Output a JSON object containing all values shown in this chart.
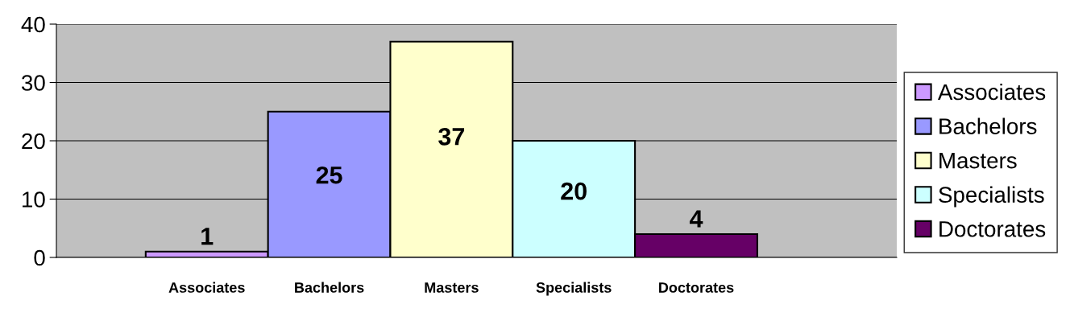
{
  "chart_data": {
    "type": "bar",
    "categories": [
      "Associates",
      "Bachelors",
      "Masters",
      "Specialists",
      "Doctorates"
    ],
    "series": [
      {
        "name": "Associates",
        "color": "#cc99ff",
        "values": [
          1,
          null,
          null,
          null,
          null
        ]
      },
      {
        "name": "Bachelors",
        "color": "#9999ff",
        "values": [
          null,
          25,
          null,
          null,
          null
        ]
      },
      {
        "name": "Masters",
        "color": "#ffffcc",
        "values": [
          null,
          null,
          37,
          null,
          null
        ]
      },
      {
        "name": "Specialists",
        "color": "#ccffff",
        "values": [
          null,
          null,
          null,
          20,
          null
        ]
      },
      {
        "name": "Doctorates",
        "color": "#660066",
        "values": [
          null,
          null,
          null,
          null,
          4
        ]
      }
    ],
    "stacked": true,
    "ylim": [
      0,
      40
    ],
    "yticks": [
      0,
      10,
      20,
      30,
      40
    ],
    "grid": "y",
    "legend": "right",
    "data_labels": true
  }
}
